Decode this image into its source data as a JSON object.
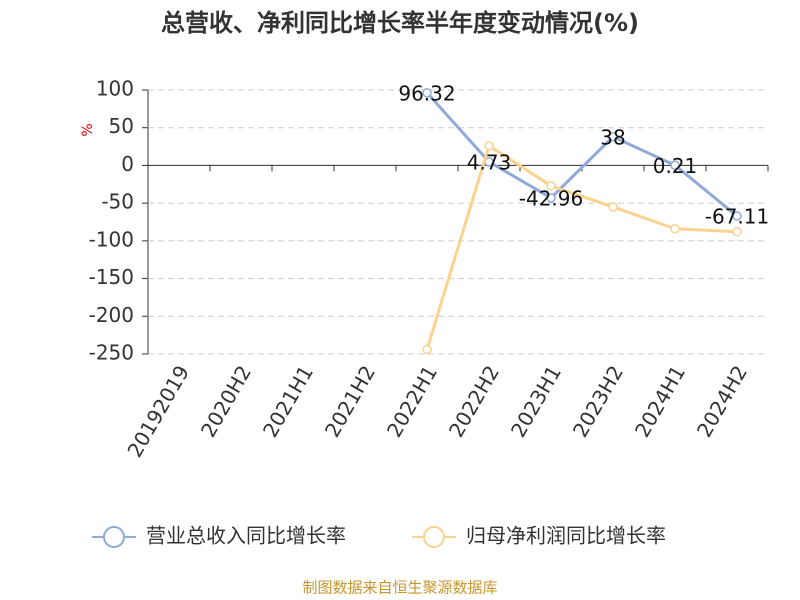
{
  "chart_data": {
    "type": "line",
    "title": "总营收、净利同比增长率半年度变动情况(%)",
    "y_label": "%",
    "categories": [
      "20192019",
      "2020H2",
      "2021H1",
      "2021H2",
      "2022H1",
      "2022H2",
      "2023H1",
      "2023H2",
      "2024H1",
      "2024H2"
    ],
    "series": [
      {
        "name": "营业总收入同比增长率",
        "color": "#8fa9d8",
        "values": [
          null,
          null,
          null,
          null,
          96.32,
          4.73,
          -42.96,
          38,
          0.21,
          -67.11
        ],
        "data_labels": true
      },
      {
        "name": "归母净利润同比增长率",
        "color": "#fcd28f",
        "values": [
          null,
          null,
          null,
          null,
          -244,
          26,
          -27,
          -55,
          -84,
          -88
        ]
      }
    ],
    "ylim": [
      -250,
      100
    ],
    "yticks": [
      100,
      50,
      0,
      -50,
      -100,
      -150,
      -200,
      -250
    ],
    "grid": true,
    "legend": "bottom",
    "source": "制图数据来自恒生聚源数据库"
  }
}
